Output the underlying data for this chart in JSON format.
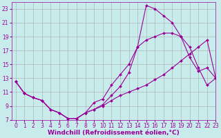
{
  "xlabel": "Windchill (Refroidissement éolien,°C)",
  "bg_color": "#c8ecec",
  "line_color": "#990099",
  "grid_color": "#aaaaaa",
  "xlim": [
    -0.5,
    23
  ],
  "ylim": [
    7,
    24
  ],
  "xticks": [
    0,
    1,
    2,
    3,
    4,
    5,
    6,
    7,
    8,
    9,
    10,
    11,
    12,
    13,
    14,
    15,
    16,
    17,
    18,
    19,
    20,
    21,
    22,
    23
  ],
  "yticks": [
    7,
    9,
    11,
    13,
    15,
    17,
    19,
    21,
    23
  ],
  "line1_x": [
    0,
    1,
    2,
    3,
    4,
    5,
    6,
    7,
    8,
    9,
    10,
    11,
    12,
    13,
    14,
    15,
    16,
    17,
    18,
    19,
    20,
    21,
    22,
    23
  ],
  "line1_y": [
    12.5,
    10.8,
    10.2,
    9.8,
    8.5,
    8.0,
    7.2,
    7.2,
    8.0,
    9.5,
    10.0,
    12.0,
    13.5,
    15.0,
    17.5,
    18.5,
    19.0,
    19.5,
    19.5,
    19.0,
    16.0,
    14.0,
    14.5,
    13.0
  ],
  "line2_x": [
    0,
    1,
    2,
    3,
    4,
    5,
    6,
    7,
    8,
    9,
    10,
    11,
    12,
    13,
    14,
    15,
    16,
    17,
    18,
    19,
    20,
    21,
    22,
    23
  ],
  "line2_y": [
    12.5,
    10.8,
    10.2,
    9.8,
    8.5,
    8.0,
    7.2,
    7.2,
    8.0,
    8.5,
    9.2,
    10.5,
    11.8,
    13.8,
    17.5,
    23.5,
    23.0,
    22.0,
    21.0,
    19.0,
    17.5,
    14.5,
    12.0,
    13.0
  ],
  "line3_x": [
    0,
    1,
    2,
    3,
    4,
    5,
    6,
    7,
    8,
    9,
    10,
    11,
    12,
    13,
    14,
    15,
    16,
    17,
    18,
    19,
    20,
    21,
    22,
    23
  ],
  "line3_y": [
    12.5,
    10.8,
    10.2,
    9.8,
    8.5,
    8.0,
    7.2,
    7.2,
    8.0,
    8.5,
    9.0,
    9.8,
    10.5,
    11.0,
    11.5,
    12.0,
    12.8,
    13.5,
    14.5,
    15.5,
    16.5,
    17.5,
    18.5,
    13.0
  ],
  "marker": "D",
  "markersize": 2.0,
  "linewidth": 0.8,
  "xlabel_fontsize": 6.5,
  "tick_fontsize": 5.5
}
